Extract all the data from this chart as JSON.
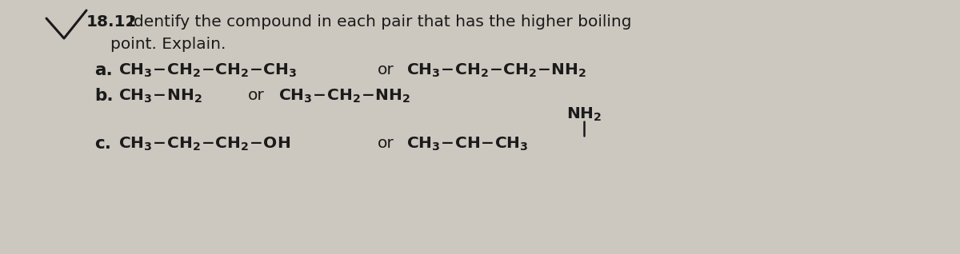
{
  "background_color": "#ccc8bf",
  "title_number": "18.12",
  "title_rest": " Identify the compound in each pair that has the higher boiling",
  "title_line2": "point. Explain.",
  "line_a_label": "a.",
  "line_a_c1": "$\\mathbf{CH_3\\!-\\!CH_2\\!-\\!CH_2\\!-\\!CH_3}$",
  "line_a_or": "or",
  "line_a_c2": "$\\mathbf{CH_3\\!-\\!CH_2\\!-\\!CH_2\\!-\\!NH_2}$",
  "line_b_label": "b.",
  "line_b_c1": "$\\mathbf{CH_3\\!-\\!NH_2}$",
  "line_b_or": "or",
  "line_b_c2": "$\\mathbf{CH_3\\!-\\!CH_2\\!-\\!NH_2}$",
  "line_c_label": "c.",
  "line_c_c1": "$\\mathbf{CH_3\\!-\\!CH_2\\!-\\!CH_2\\!-\\!OH}$",
  "line_c_or": "or",
  "line_c_c2": "$\\mathbf{CH_3\\!-\\!CH\\!-\\!CH_3}$",
  "line_c_nh2": "$\\mathbf{NH_2}$",
  "text_color": "#1a1a1a",
  "font_size": 14.5,
  "title_font_size": 14.5,
  "label_font_size": 15.5
}
